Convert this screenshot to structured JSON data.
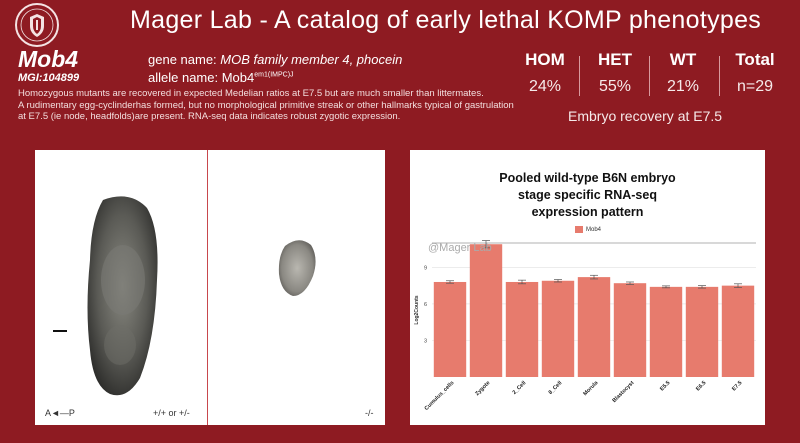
{
  "header": {
    "title": "Mager Lab - A catalog of early lethal KOMP phenotypes"
  },
  "gene": {
    "symbol": "Mob4",
    "mgi": "MGI:104899",
    "name_label": "gene name: ",
    "name_value": "MOB family member 4, phocein",
    "allele_label": "allele name: ",
    "allele_base": "Mob4",
    "allele_sup": "em1(IMPC)J"
  },
  "description": {
    "lines": [
      "Homozygous mutants are recovered in expected Medelian ratios at E7.5 but are much smaller than littermates.",
      "A rudimentary egg-cyclinderhas formed, but no morphological primitive streak or other hallmarks typical of gastrulation",
      "at E7.5 (ie node, headfolds)are present. RNA-seq data indicates robust zygotic expression."
    ]
  },
  "stats": {
    "hom_label": "HOM",
    "hom_value": "24%",
    "het_label": "HET",
    "het_value": "55%",
    "wt_label": "WT",
    "wt_value": "21%",
    "total_label": "Total",
    "total_value": "n=29",
    "recovery_text": "Embryo recovery at E7.5"
  },
  "images": {
    "axis_label": "A◄—P",
    "left_genotype": "+/+ or +/-",
    "right_genotype": "-/-"
  },
  "chart_data": {
    "type": "bar",
    "title_lines": [
      "Pooled wild-type B6N embryo",
      "stage specific RNA-seq",
      "expression pattern"
    ],
    "watermark": "@Mager Lab",
    "legend": [
      "Mob4"
    ],
    "ylabel": "Log2Counts",
    "yticks": [
      3,
      6,
      9
    ],
    "ylim": [
      0,
      11
    ],
    "categories": [
      "Cumulus_cells",
      "Zygote",
      "2_Cell",
      "8_Cell",
      "Morula",
      "Blastocyst",
      "E5.5",
      "E6.5",
      "E7.5"
    ],
    "values": [
      7.8,
      10.9,
      7.8,
      7.9,
      8.2,
      7.7,
      7.4,
      7.4,
      7.5
    ],
    "errors": [
      0.1,
      0.3,
      0.15,
      0.1,
      0.15,
      0.1,
      0.08,
      0.1,
      0.15
    ],
    "colors": {
      "bar": "#e77b6d",
      "error": "#555555",
      "grid": "#e6e6e6"
    }
  }
}
